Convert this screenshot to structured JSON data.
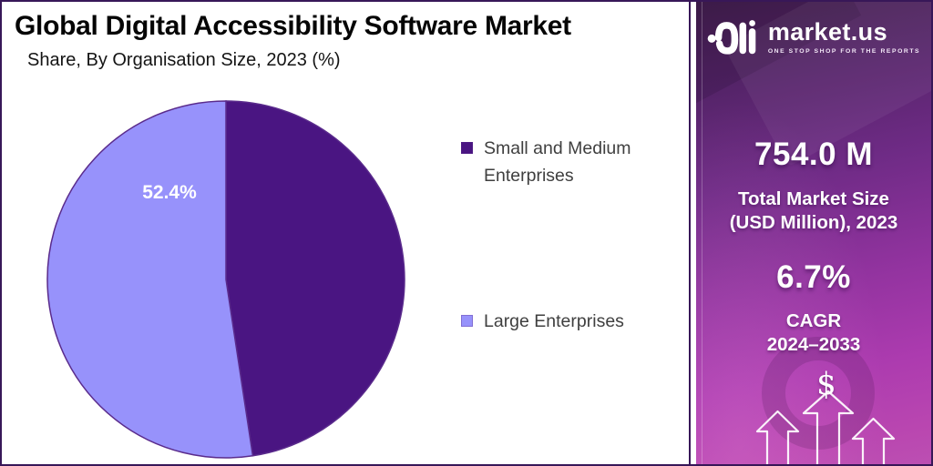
{
  "chart_data": {
    "type": "pie",
    "title": "Global Digital Accessibility Software Market",
    "subtitle": "Share, By Organisation Size, 2023 (%)",
    "unit": "%",
    "categories": [
      "Small and Medium Enterprises",
      "Large Enterprises"
    ],
    "values": [
      47.6,
      52.4
    ],
    "colors": [
      "#4A1582",
      "#9792FB"
    ],
    "stroke_color": "#5A2B8C",
    "slice_label": "52.4%",
    "slice_label_for": "Large Enterprises",
    "start_angle_deg": 0,
    "direction": "clockwise",
    "legend_position": "right"
  },
  "sidebar": {
    "brand": {
      "name": "market.us",
      "tagline": "ONE STOP SHOP FOR THE REPORTS",
      "logo_icon": "marketus-logo"
    },
    "market_size": {
      "value": "754.0 M",
      "label_line1": "Total Market Size",
      "label_line2": "(USD Million), 2023"
    },
    "cagr": {
      "value": "6.7%",
      "label_line1": "CAGR",
      "label_line2": "2024–2033"
    },
    "dollar_sign": "$"
  },
  "colors": {
    "frame_border": "#381758",
    "sidebar_gradient_top": "#44204F",
    "sidebar_gradient_bottom": "#BC4FB2",
    "title_text": "#050505",
    "legend_text": "#3F3F3F"
  }
}
